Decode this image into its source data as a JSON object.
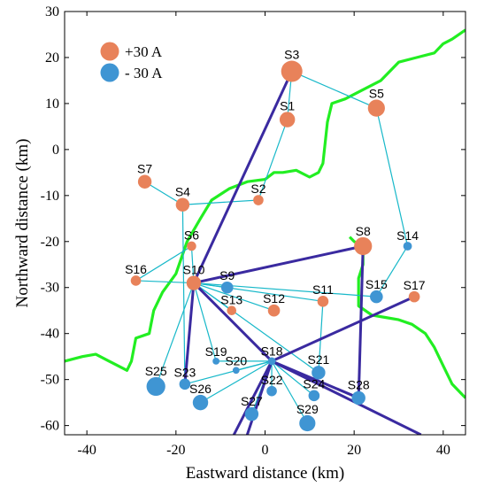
{
  "chart_data": {
    "type": "scatter",
    "xlabel": "Eastward distance (km)",
    "ylabel": "Northward distance (km)",
    "xlim": [
      -45,
      45
    ],
    "ylim": [
      -62,
      30
    ],
    "xticks": [
      -40,
      -20,
      0,
      20,
      40
    ],
    "yticks": [
      30,
      20,
      10,
      0,
      -10,
      -20,
      -30,
      -40,
      -50,
      -60
    ],
    "grid": false,
    "legend": {
      "placement": "top-left",
      "entries": [
        {
          "label": "+30 A",
          "color": "#E8825A"
        },
        {
          "label": "- 30 A",
          "color": "#3F95D3"
        }
      ]
    },
    "colors": {
      "positive": "#E8825A",
      "negative": "#3F95D3",
      "thin_link": "#17B8C9",
      "thick_link": "#3A2AA0",
      "boundary": "#22EE22"
    },
    "stations": [
      {
        "name": "S1",
        "x": 5,
        "y": 6.5,
        "polarity": "+",
        "size": 0.65
      },
      {
        "name": "S2",
        "x": -1.5,
        "y": -11,
        "polarity": "+",
        "size": 0.35
      },
      {
        "name": "S3",
        "x": 6,
        "y": 17,
        "polarity": "+",
        "size": 1.0
      },
      {
        "name": "S4",
        "x": -18.5,
        "y": -12,
        "polarity": "+",
        "size": 0.55
      },
      {
        "name": "S5",
        "x": 25,
        "y": 9,
        "polarity": "+",
        "size": 0.75
      },
      {
        "name": "S6",
        "x": -16.5,
        "y": -21,
        "polarity": "+",
        "size": 0.3
      },
      {
        "name": "S7",
        "x": -27,
        "y": -7,
        "polarity": "+",
        "size": 0.55
      },
      {
        "name": "S8",
        "x": 22,
        "y": -21,
        "polarity": "+",
        "size": 0.8
      },
      {
        "name": "S9",
        "x": -8.5,
        "y": -30,
        "polarity": "-",
        "size": 0.45
      },
      {
        "name": "S10",
        "x": -16,
        "y": -29,
        "polarity": "+",
        "size": 0.6
      },
      {
        "name": "S11",
        "x": 13,
        "y": -33,
        "polarity": "+",
        "size": 0.4
      },
      {
        "name": "S12",
        "x": 2,
        "y": -35,
        "polarity": "+",
        "size": 0.45
      },
      {
        "name": "S13",
        "x": -7.5,
        "y": -35,
        "polarity": "+",
        "size": 0.3
      },
      {
        "name": "S14",
        "x": 32,
        "y": -21,
        "polarity": "-",
        "size": 0.25
      },
      {
        "name": "S15",
        "x": 25,
        "y": -32,
        "polarity": "-",
        "size": 0.5
      },
      {
        "name": "S16",
        "x": -29,
        "y": -28.5,
        "polarity": "+",
        "size": 0.35
      },
      {
        "name": "S17",
        "x": 33.5,
        "y": -32,
        "polarity": "+",
        "size": 0.4
      },
      {
        "name": "S18",
        "x": 1.5,
        "y": -46,
        "polarity": "-",
        "size": 0.2
      },
      {
        "name": "S19",
        "x": -11,
        "y": -46,
        "polarity": "-",
        "size": 0.15
      },
      {
        "name": "S20",
        "x": -6.5,
        "y": -48,
        "polarity": "-",
        "size": 0.15
      },
      {
        "name": "S21",
        "x": 12,
        "y": -48.5,
        "polarity": "-",
        "size": 0.55
      },
      {
        "name": "S22",
        "x": 1.5,
        "y": -52.5,
        "polarity": "-",
        "size": 0.35
      },
      {
        "name": "S23",
        "x": -18,
        "y": -51,
        "polarity": "-",
        "size": 0.4
      },
      {
        "name": "S24",
        "x": 11,
        "y": -53.5,
        "polarity": "-",
        "size": 0.4
      },
      {
        "name": "S25",
        "x": -24.5,
        "y": -51.5,
        "polarity": "-",
        "size": 0.85
      },
      {
        "name": "S26",
        "x": -14.5,
        "y": -55,
        "polarity": "-",
        "size": 0.65
      },
      {
        "name": "S27",
        "x": -3,
        "y": -57.5,
        "polarity": "-",
        "size": 0.55
      },
      {
        "name": "S28",
        "x": 21,
        "y": -54,
        "polarity": "-",
        "size": 0.55
      },
      {
        "name": "S29",
        "x": 9.5,
        "y": -59.5,
        "polarity": "-",
        "size": 0.7
      }
    ],
    "thin_links": [
      [
        "S3",
        "S1"
      ],
      [
        "S3",
        "S5"
      ],
      [
        "S5",
        "S14"
      ],
      [
        "S1",
        "S2"
      ],
      [
        "S2",
        "S4"
      ],
      [
        "S4",
        "S7"
      ],
      [
        "S4",
        "S23"
      ],
      [
        "S6",
        "S16"
      ],
      [
        "S6",
        "S10"
      ],
      [
        "S10",
        "S16"
      ],
      [
        "S10",
        "S9"
      ],
      [
        "S10",
        "S11"
      ],
      [
        "S10",
        "S12"
      ],
      [
        "S10",
        "S13"
      ],
      [
        "S10",
        "S15"
      ],
      [
        "S10",
        "S19"
      ],
      [
        "S10",
        "S25"
      ],
      [
        "S10",
        "S21"
      ],
      [
        "S14",
        "S15"
      ],
      [
        "S11",
        "S21"
      ],
      [
        "S18",
        "S19"
      ],
      [
        "S18",
        "S20"
      ],
      [
        "S18",
        "S22"
      ],
      [
        "S18",
        "S23"
      ],
      [
        "S18",
        "S24"
      ],
      [
        "S18",
        "S26"
      ],
      [
        "S18",
        "S27"
      ],
      [
        "S18",
        "S29"
      ]
    ],
    "thick_links": [
      [
        "S3",
        "S10"
      ],
      [
        "S10",
        "S8"
      ],
      [
        "S10",
        "S18"
      ],
      [
        "S10",
        "S23"
      ],
      [
        "S18",
        "S17"
      ],
      [
        "S8",
        "S28"
      ],
      [
        "S18",
        "S28"
      ]
    ],
    "thick_lines_offchart": [
      {
        "from": "S18",
        "to": [
          -7,
          -62
        ]
      },
      {
        "from": "S18",
        "to": [
          35,
          -62
        ]
      },
      {
        "from": "S18",
        "to": [
          -4,
          -62
        ]
      }
    ],
    "boundary": [
      [
        -45,
        -46
      ],
      [
        -41,
        -45
      ],
      [
        -38,
        -44.5
      ],
      [
        -35,
        -46
      ],
      [
        -31,
        -48
      ],
      [
        -30,
        -46
      ],
      [
        -29,
        -41
      ],
      [
        -26,
        -40
      ],
      [
        -25,
        -35
      ],
      [
        -23,
        -31
      ],
      [
        -20,
        -27
      ],
      [
        -17.5,
        -20
      ],
      [
        -14.5,
        -15
      ],
      [
        -12,
        -11
      ],
      [
        -8,
        -8.5
      ],
      [
        -4,
        -7
      ],
      [
        0,
        -6.5
      ],
      [
        2,
        -5
      ],
      [
        4,
        -5
      ],
      [
        7,
        -4.5
      ],
      [
        10,
        -6
      ],
      [
        12,
        -5
      ],
      [
        13,
        -3
      ],
      [
        14,
        6
      ],
      [
        15,
        10
      ],
      [
        18,
        11
      ],
      [
        22,
        13
      ],
      [
        26,
        15
      ],
      [
        30,
        19
      ],
      [
        34,
        20
      ],
      [
        38,
        21
      ],
      [
        40,
        23
      ],
      [
        42,
        24
      ],
      [
        45,
        26
      ],
      [
        null,
        null
      ],
      [
        19,
        -19
      ],
      [
        20,
        -20
      ],
      [
        22,
        -21
      ],
      [
        22,
        -25
      ],
      [
        21,
        -28
      ],
      [
        21,
        -34
      ],
      [
        24,
        -36
      ],
      [
        27,
        -36.5
      ],
      [
        30,
        -37
      ],
      [
        33,
        -38
      ],
      [
        36,
        -40
      ],
      [
        38,
        -43
      ],
      [
        40,
        -47
      ],
      [
        42,
        -51
      ],
      [
        44,
        -53
      ],
      [
        45,
        -54
      ]
    ]
  }
}
